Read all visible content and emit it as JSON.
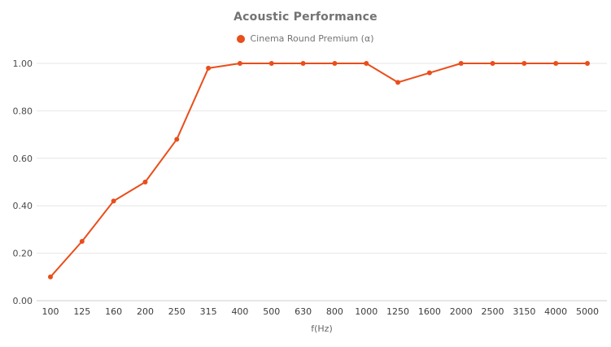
{
  "chart_data": {
    "type": "line",
    "title": "Acoustic Performance",
    "xlabel": "f(Hz)",
    "ylabel": "",
    "ylim": [
      0,
      1.0
    ],
    "yticks": [
      0,
      0.2,
      0.4,
      0.6,
      0.8,
      1.0
    ],
    "grid": "horizontal",
    "legend_position": "top",
    "categories": [
      "100",
      "125",
      "160",
      "200",
      "250",
      "315",
      "400",
      "500",
      "630",
      "800",
      "1000",
      "1250",
      "1600",
      "2000",
      "2500",
      "3150",
      "4000",
      "5000"
    ],
    "series": [
      {
        "name": "Cinema Round Premium (α)",
        "color": "#e94e1b",
        "values": [
          0.1,
          0.25,
          0.42,
          0.5,
          0.68,
          0.98,
          1.0,
          1.0,
          1.0,
          1.0,
          1.0,
          0.92,
          0.96,
          1.0,
          1.0,
          1.0,
          1.0,
          1.0
        ]
      }
    ]
  }
}
